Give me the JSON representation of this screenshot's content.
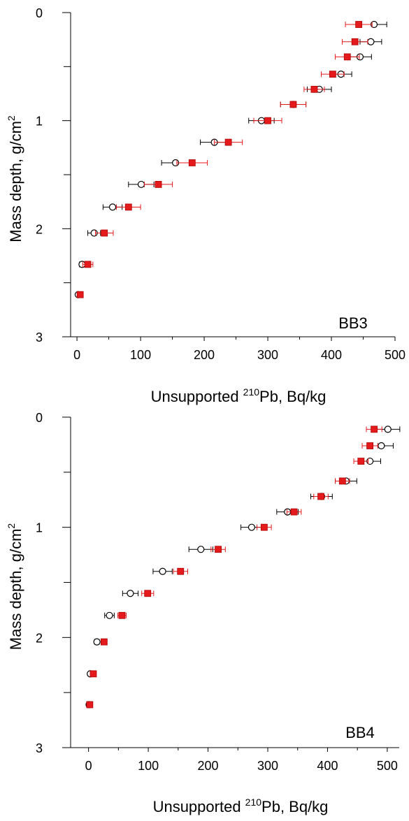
{
  "chart_data": [
    {
      "type": "scatter",
      "panel_label": "BB3",
      "xlabel_prefix": "Unsupported ",
      "xlabel_superscript": "210",
      "xlabel_suffix": "Pb, Bq/kg",
      "ylabel_main": "Mass depth, g/cm",
      "ylabel_superscript": "2",
      "xlim": [
        -10,
        500
      ],
      "ylim": [
        3,
        0
      ],
      "x_ticks": [
        0,
        100,
        200,
        300,
        400,
        500
      ],
      "x_tick_labels": [
        "0",
        "100",
        "200",
        "300",
        "400",
        "500"
      ],
      "y_ticks": [
        0,
        1,
        2,
        3
      ],
      "y_tick_labels": [
        "0",
        "1",
        "2",
        "3"
      ],
      "y_minor_ticks": [
        0.5,
        1.5,
        2.5
      ],
      "series": [
        {
          "marker": "open-circle",
          "color": "#000000",
          "points": [
            {
              "x": 467,
              "y": 0.11,
              "xerr": 20
            },
            {
              "x": 462,
              "y": 0.27,
              "xerr": 17
            },
            {
              "x": 445,
              "y": 0.41,
              "xerr": 18
            },
            {
              "x": 415,
              "y": 0.57,
              "xerr": 17
            },
            {
              "x": 381,
              "y": 0.71,
              "xerr": 19
            },
            {
              "x": 340,
              "y": 0.85,
              "xerr": 20
            },
            {
              "x": 290,
              "y": 1.0,
              "xerr": 20
            },
            {
              "x": 216,
              "y": 1.2,
              "xerr": 22
            },
            {
              "x": 155,
              "y": 1.39,
              "xerr": 22
            },
            {
              "x": 101,
              "y": 1.59,
              "xerr": 20
            },
            {
              "x": 56,
              "y": 1.8,
              "xerr": 15
            },
            {
              "x": 27,
              "y": 2.04,
              "xerr": 10
            },
            {
              "x": 8,
              "y": 2.33,
              "xerr": 4
            },
            {
              "x": 2,
              "y": 2.61,
              "xerr": 2
            }
          ]
        },
        {
          "marker": "filled-square",
          "color": "#e41a1c",
          "points": [
            {
              "x": 443,
              "y": 0.11,
              "xerr": 21
            },
            {
              "x": 437,
              "y": 0.27,
              "xerr": 20
            },
            {
              "x": 425,
              "y": 0.41,
              "xerr": 19
            },
            {
              "x": 402,
              "y": 0.57,
              "xerr": 18
            },
            {
              "x": 373,
              "y": 0.71,
              "xerr": 16
            },
            {
              "x": 340,
              "y": 0.85,
              "xerr": 20
            },
            {
              "x": 300,
              "y": 1.0,
              "xerr": 22
            },
            {
              "x": 238,
              "y": 1.2,
              "xerr": 22
            },
            {
              "x": 181,
              "y": 1.39,
              "xerr": 24
            },
            {
              "x": 128,
              "y": 1.59,
              "xerr": 22
            },
            {
              "x": 81,
              "y": 1.8,
              "xerr": 19
            },
            {
              "x": 43,
              "y": 2.04,
              "xerr": 14
            },
            {
              "x": 17,
              "y": 2.33,
              "xerr": 8
            },
            {
              "x": 5,
              "y": 2.61,
              "xerr": 3
            }
          ]
        }
      ]
    },
    {
      "type": "scatter",
      "panel_label": "BB4",
      "xlabel_prefix": "Unsupported ",
      "xlabel_superscript": "210",
      "xlabel_suffix": "Pb, Bq/kg",
      "ylabel_main": "Mass depth, g/cm",
      "ylabel_superscript": "2",
      "xlim": [
        -30,
        520
      ],
      "ylim": [
        3,
        0
      ],
      "x_ticks": [
        0,
        100,
        200,
        300,
        400,
        500
      ],
      "x_tick_labels": [
        "0",
        "100",
        "200",
        "300",
        "400",
        "500"
      ],
      "y_ticks": [
        0,
        1,
        2,
        3
      ],
      "y_tick_labels": [
        "0",
        "1",
        "2",
        "3"
      ],
      "y_minor_ticks": [
        0.5,
        1.5,
        2.5
      ],
      "series": [
        {
          "marker": "open-circle",
          "color": "#000000",
          "points": [
            {
              "x": 501,
              "y": 0.11,
              "xerr": 20
            },
            {
              "x": 490,
              "y": 0.26,
              "xerr": 20
            },
            {
              "x": 471,
              "y": 0.4,
              "xerr": 18
            },
            {
              "x": 431,
              "y": 0.58,
              "xerr": 18
            },
            {
              "x": 390,
              "y": 0.72,
              "xerr": 18
            },
            {
              "x": 333,
              "y": 0.86,
              "xerr": 18
            },
            {
              "x": 273,
              "y": 1.0,
              "xerr": 18
            },
            {
              "x": 188,
              "y": 1.2,
              "xerr": 20
            },
            {
              "x": 124,
              "y": 1.4,
              "xerr": 16
            },
            {
              "x": 70,
              "y": 1.6,
              "xerr": 13
            },
            {
              "x": 35,
              "y": 1.8,
              "xerr": 8
            },
            {
              "x": 14,
              "y": 2.04,
              "xerr": 4
            },
            {
              "x": 3,
              "y": 2.33,
              "xerr": 2
            },
            {
              "x": 1,
              "y": 2.61,
              "xerr": 1
            }
          ]
        },
        {
          "marker": "filled-square",
          "color": "#e41a1c",
          "points": [
            {
              "x": 478,
              "y": 0.11,
              "xerr": 13
            },
            {
              "x": 471,
              "y": 0.26,
              "xerr": 13
            },
            {
              "x": 456,
              "y": 0.4,
              "xerr": 12
            },
            {
              "x": 425,
              "y": 0.58,
              "xerr": 12
            },
            {
              "x": 389,
              "y": 0.72,
              "xerr": 12
            },
            {
              "x": 344,
              "y": 0.86,
              "xerr": 12
            },
            {
              "x": 294,
              "y": 1.0,
              "xerr": 12
            },
            {
              "x": 217,
              "y": 1.2,
              "xerr": 12
            },
            {
              "x": 154,
              "y": 1.4,
              "xerr": 12
            },
            {
              "x": 99,
              "y": 1.6,
              "xerr": 10
            },
            {
              "x": 56,
              "y": 1.8,
              "xerr": 7
            },
            {
              "x": 26,
              "y": 2.04,
              "xerr": 4
            },
            {
              "x": 8,
              "y": 2.33,
              "xerr": 2
            },
            {
              "x": 2,
              "y": 2.61,
              "xerr": 1
            }
          ]
        }
      ]
    }
  ]
}
